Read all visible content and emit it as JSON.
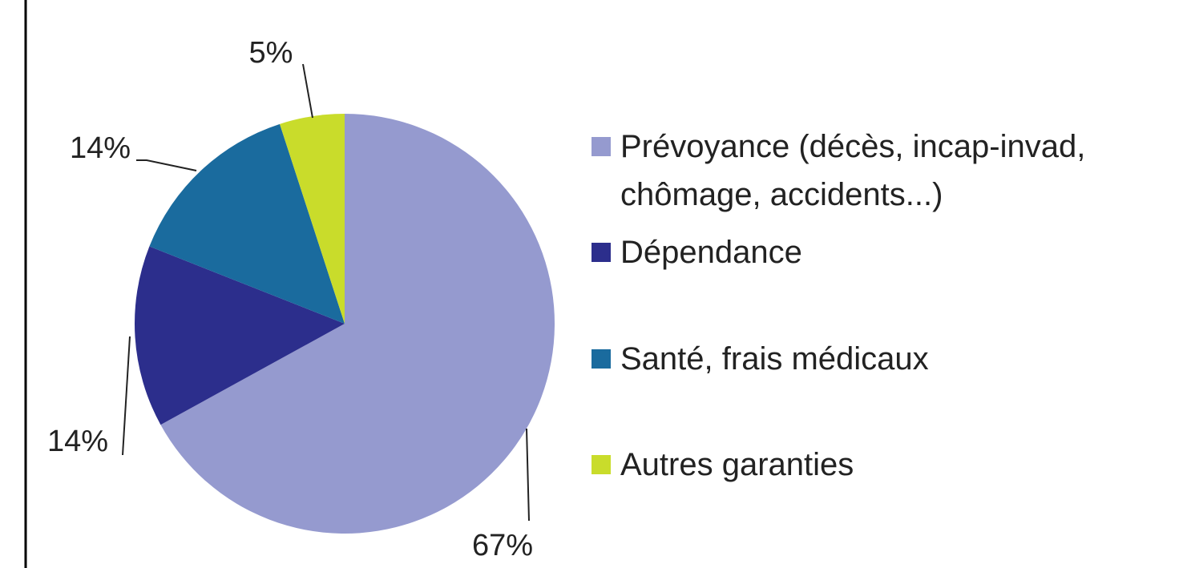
{
  "chart_data": {
    "type": "pie",
    "categories": [
      "Prévoyance (décès, incap-invad, chômage, accidents...)",
      "Dépendance",
      "Santé, frais médicaux",
      "Autres garanties"
    ],
    "values": [
      67,
      14,
      14,
      5
    ],
    "value_labels": [
      "67%",
      "14%",
      "14%",
      "5%"
    ],
    "colors": [
      "#959acf",
      "#2c2e8c",
      "#1a6b9e",
      "#c9dc2b"
    ]
  }
}
